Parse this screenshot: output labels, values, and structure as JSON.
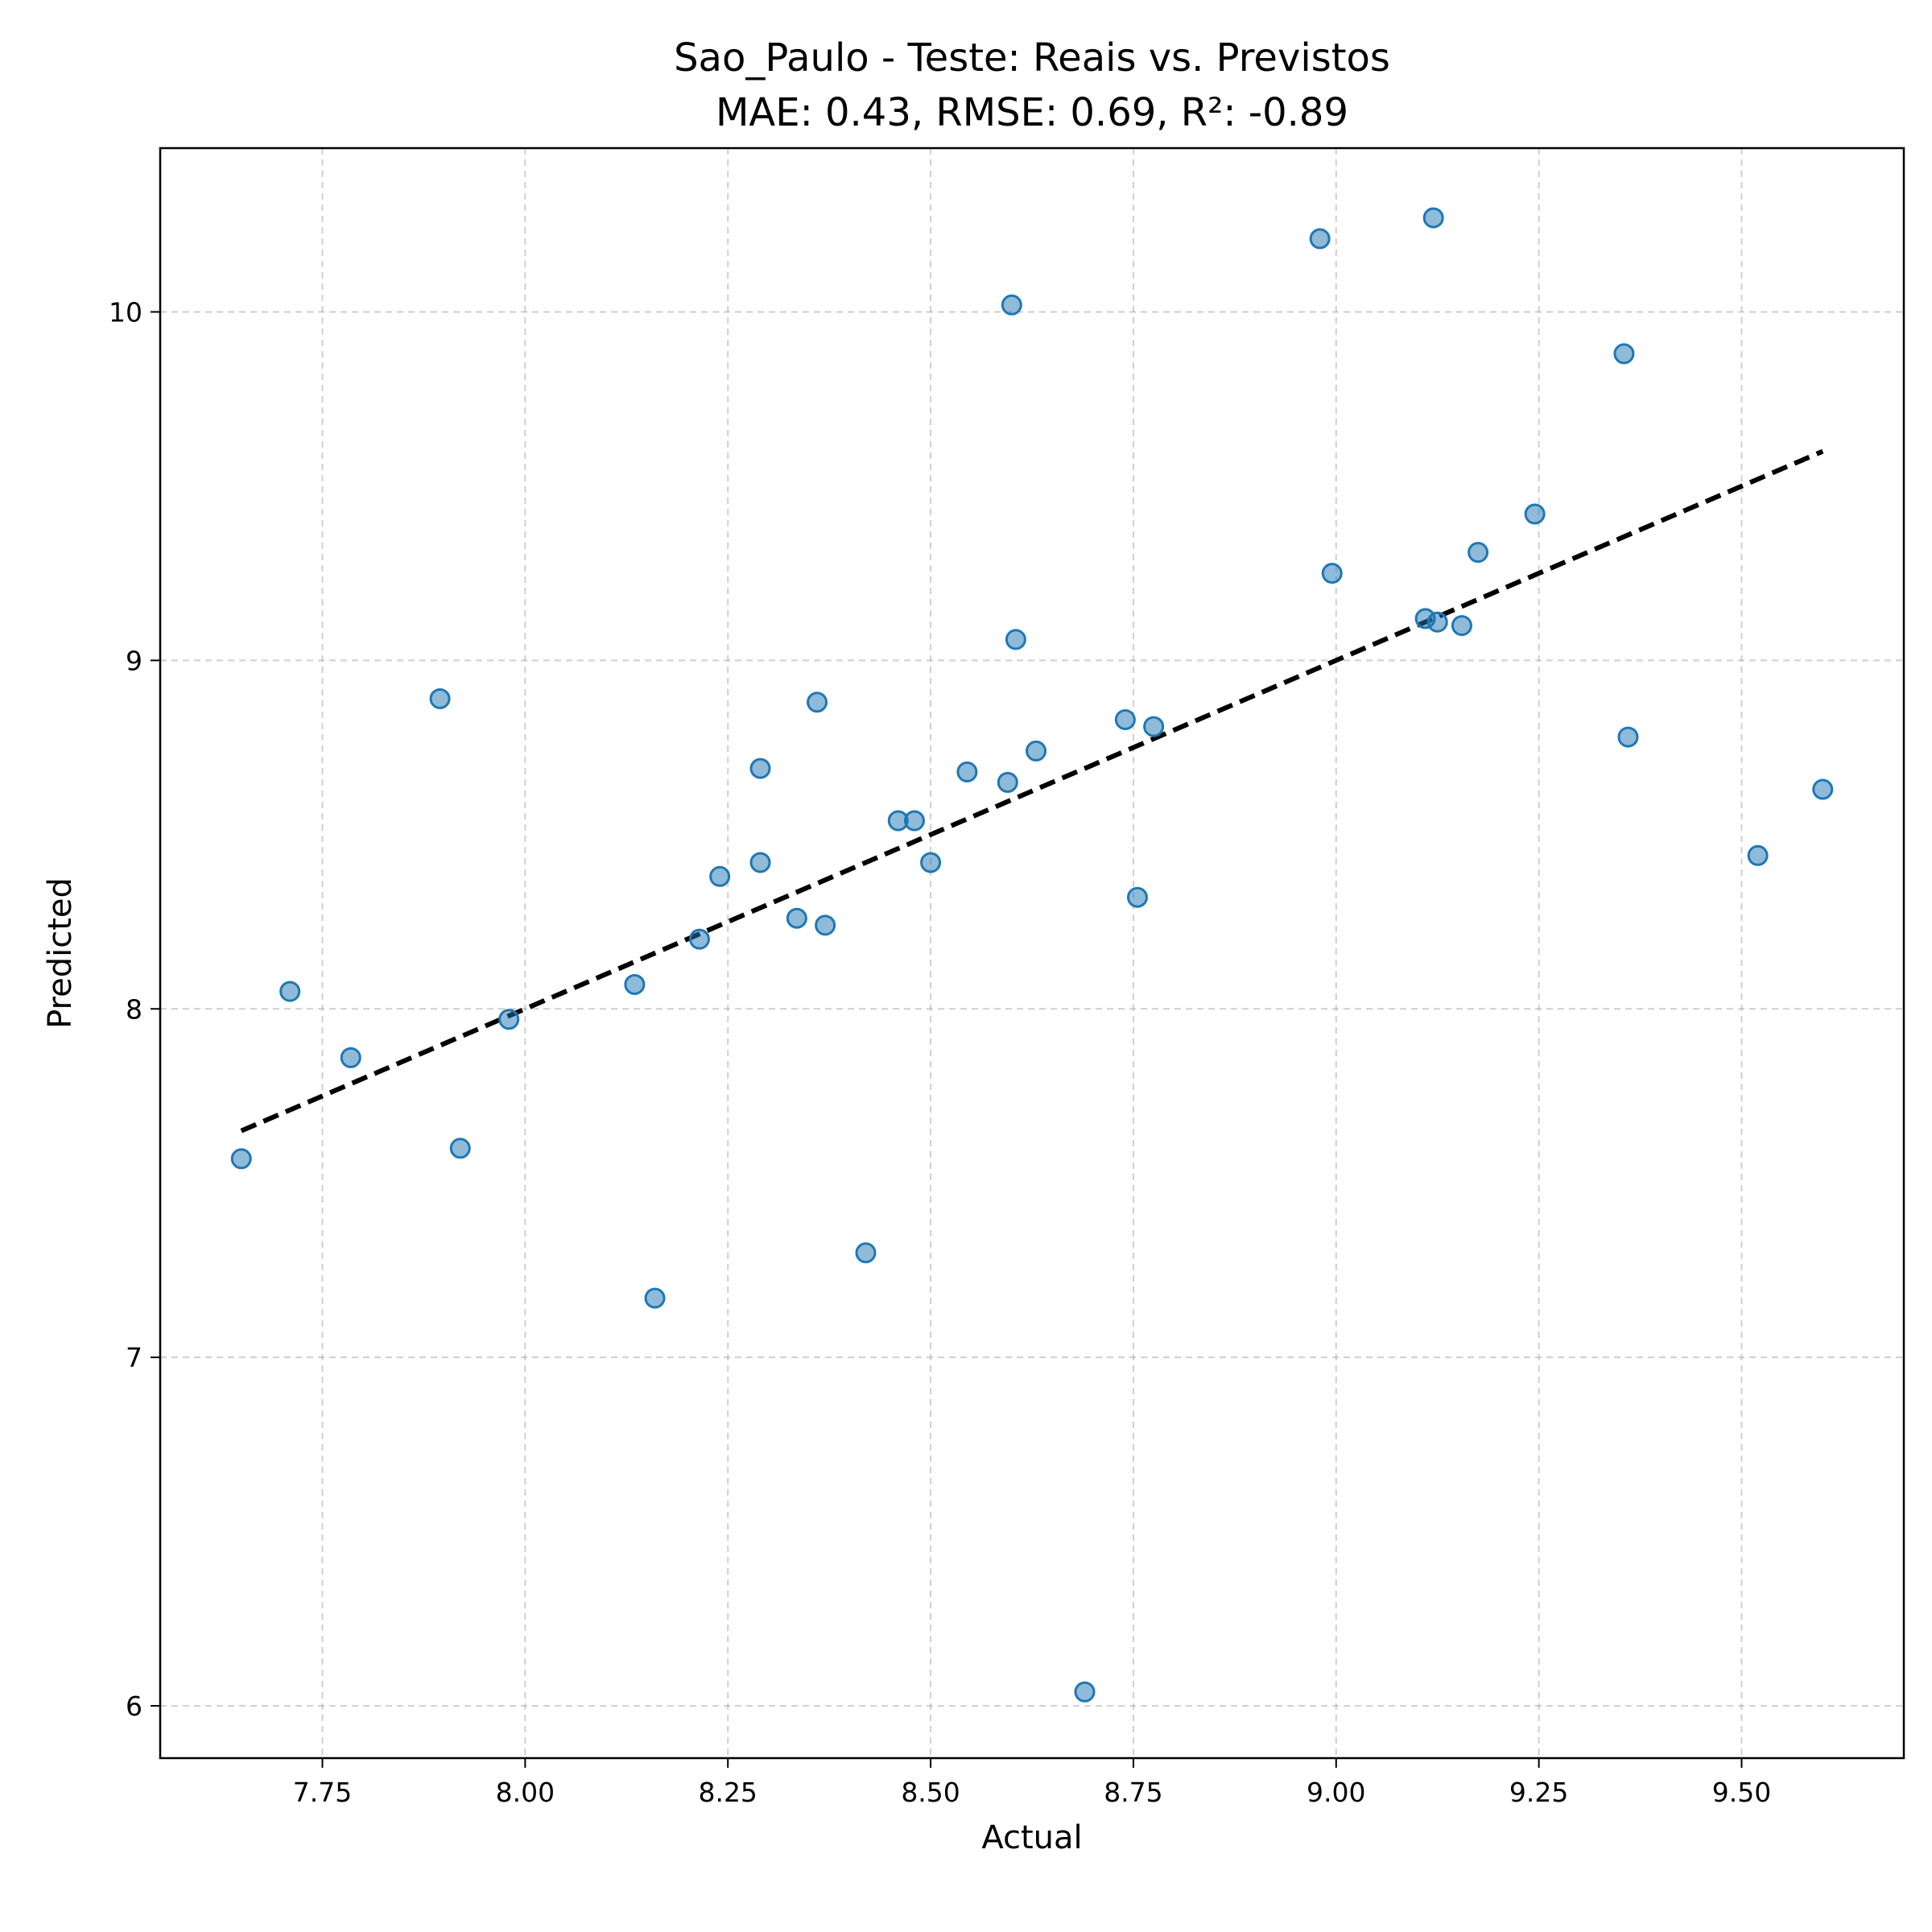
{
  "chart_data": {
    "type": "scatter",
    "title": "Sao_Paulo - Teste: Reais vs. Previstos",
    "subtitle": "MAE: 0.43, RMSE: 0.69, R²: -0.89",
    "xlabel": "Actual",
    "ylabel": "Predicted",
    "xlim": [
      7.55,
      9.7
    ],
    "ylim": [
      5.85,
      10.47
    ],
    "xticks": [
      7.75,
      8.0,
      8.25,
      8.5,
      8.75,
      9.0,
      9.25,
      9.5
    ],
    "xtick_labels": [
      "7.75",
      "8.00",
      "8.25",
      "8.50",
      "8.75",
      "9.00",
      "9.25",
      "9.50"
    ],
    "yticks": [
      6,
      7,
      8,
      9,
      10
    ],
    "ytick_labels": [
      "6",
      "7",
      "8",
      "9",
      "10"
    ],
    "grid": true,
    "point_color": "#1f77b4",
    "line_color": "#000000",
    "reference_line": {
      "x": [
        7.65,
        9.6
      ],
      "y": [
        7.65,
        9.6
      ],
      "style": "dashed"
    },
    "points": [
      {
        "x": 7.65,
        "y": 7.57
      },
      {
        "x": 7.71,
        "y": 8.05
      },
      {
        "x": 7.785,
        "y": 7.86
      },
      {
        "x": 7.895,
        "y": 8.89
      },
      {
        "x": 7.92,
        "y": 7.6
      },
      {
        "x": 7.98,
        "y": 7.97
      },
      {
        "x": 8.135,
        "y": 8.07
      },
      {
        "x": 8.16,
        "y": 7.17
      },
      {
        "x": 8.215,
        "y": 8.2
      },
      {
        "x": 8.24,
        "y": 8.38
      },
      {
        "x": 8.29,
        "y": 8.69
      },
      {
        "x": 8.29,
        "y": 8.42
      },
      {
        "x": 8.335,
        "y": 8.26
      },
      {
        "x": 8.36,
        "y": 8.88
      },
      {
        "x": 8.37,
        "y": 8.24
      },
      {
        "x": 8.42,
        "y": 7.3
      },
      {
        "x": 8.46,
        "y": 8.54
      },
      {
        "x": 8.48,
        "y": 8.54
      },
      {
        "x": 8.5,
        "y": 8.42
      },
      {
        "x": 8.545,
        "y": 8.68
      },
      {
        "x": 8.595,
        "y": 8.65
      },
      {
        "x": 8.6,
        "y": 10.02
      },
      {
        "x": 8.605,
        "y": 9.06
      },
      {
        "x": 8.63,
        "y": 8.74
      },
      {
        "x": 8.69,
        "y": 6.04
      },
      {
        "x": 8.74,
        "y": 8.83
      },
      {
        "x": 8.755,
        "y": 8.32
      },
      {
        "x": 8.775,
        "y": 8.81
      },
      {
        "x": 8.98,
        "y": 10.21
      },
      {
        "x": 8.995,
        "y": 9.25
      },
      {
        "x": 9.11,
        "y": 9.12
      },
      {
        "x": 9.12,
        "y": 10.27
      },
      {
        "x": 9.125,
        "y": 9.11
      },
      {
        "x": 9.155,
        "y": 9.1
      },
      {
        "x": 9.175,
        "y": 9.31
      },
      {
        "x": 9.245,
        "y": 9.42
      },
      {
        "x": 9.355,
        "y": 9.88
      },
      {
        "x": 9.36,
        "y": 8.78
      },
      {
        "x": 9.52,
        "y": 8.44
      },
      {
        "x": 9.6,
        "y": 8.63
      }
    ]
  }
}
